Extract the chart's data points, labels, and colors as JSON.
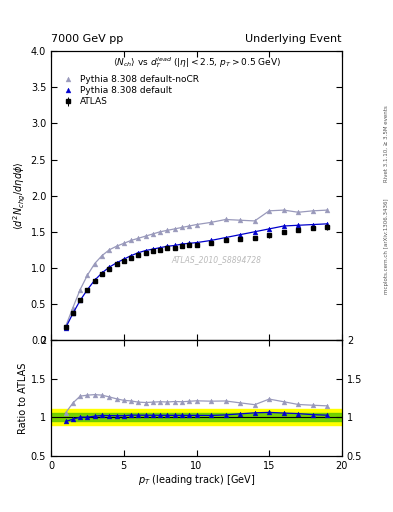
{
  "title_left": "7000 GeV pp",
  "title_right": "Underlying Event",
  "right_label_top": "Rivet 3.1.10, ≥ 3.5M events",
  "right_label_bot": "mcplots.cern.ch [arXiv:1306.3436]",
  "watermark": "ATLAS_2010_S8894728",
  "ylabel_main": "\\langle d^2 N_{chg}/d\\eta d\\phi \\rangle",
  "ylabel_ratio": "Ratio to ATLAS",
  "xlabel": "p_{T} (leading track) [GeV]",
  "xlim": [
    0,
    20
  ],
  "ylim_main": [
    0,
    4
  ],
  "ylim_ratio": [
    0.5,
    2.0
  ],
  "yticks_main": [
    0,
    0.5,
    1.0,
    1.5,
    2.0,
    2.5,
    3.0,
    3.5,
    4.0
  ],
  "yticks_ratio": [
    0.5,
    1.0,
    1.5,
    2.0
  ],
  "atlas_color": "#000000",
  "py_default_color": "#0000cc",
  "py_nocr_color": "#9999bb",
  "green_band_half": 0.05,
  "yellow_band_half": 0.1,
  "atlas_x": [
    1.0,
    1.5,
    2.0,
    2.5,
    3.0,
    3.5,
    4.0,
    4.5,
    5.0,
    5.5,
    6.0,
    6.5,
    7.0,
    7.5,
    8.0,
    8.5,
    9.0,
    9.5,
    10.0,
    11.0,
    12.0,
    13.0,
    14.0,
    15.0,
    16.0,
    17.0,
    18.0,
    19.0
  ],
  "atlas_y": [
    0.18,
    0.38,
    0.55,
    0.7,
    0.82,
    0.91,
    0.99,
    1.05,
    1.1,
    1.14,
    1.18,
    1.21,
    1.23,
    1.25,
    1.27,
    1.28,
    1.3,
    1.31,
    1.32,
    1.35,
    1.38,
    1.4,
    1.42,
    1.45,
    1.5,
    1.52,
    1.55,
    1.57
  ],
  "atlas_yerr": [
    0.02,
    0.02,
    0.02,
    0.02,
    0.02,
    0.02,
    0.02,
    0.02,
    0.02,
    0.02,
    0.02,
    0.02,
    0.02,
    0.02,
    0.02,
    0.02,
    0.02,
    0.02,
    0.02,
    0.02,
    0.02,
    0.02,
    0.02,
    0.03,
    0.03,
    0.03,
    0.03,
    0.04
  ],
  "py_default_x": [
    1.0,
    1.5,
    2.0,
    2.5,
    3.0,
    3.5,
    4.0,
    4.5,
    5.0,
    5.5,
    6.0,
    6.5,
    7.0,
    7.5,
    8.0,
    8.5,
    9.0,
    9.5,
    10.0,
    11.0,
    12.0,
    13.0,
    14.0,
    15.0,
    16.0,
    17.0,
    18.0,
    19.0
  ],
  "py_default_y": [
    0.17,
    0.37,
    0.55,
    0.7,
    0.83,
    0.93,
    1.01,
    1.07,
    1.12,
    1.17,
    1.21,
    1.24,
    1.26,
    1.28,
    1.3,
    1.31,
    1.33,
    1.34,
    1.35,
    1.38,
    1.42,
    1.46,
    1.5,
    1.54,
    1.58,
    1.59,
    1.6,
    1.61
  ],
  "py_nocr_x": [
    1.0,
    1.5,
    2.0,
    2.5,
    3.0,
    3.5,
    4.0,
    4.5,
    5.0,
    5.5,
    6.0,
    6.5,
    7.0,
    7.5,
    8.0,
    8.5,
    9.0,
    9.5,
    10.0,
    11.0,
    12.0,
    13.0,
    14.0,
    15.0,
    16.0,
    17.0,
    18.0,
    19.0
  ],
  "py_nocr_y": [
    0.19,
    0.45,
    0.7,
    0.9,
    1.06,
    1.17,
    1.25,
    1.3,
    1.34,
    1.38,
    1.41,
    1.44,
    1.47,
    1.5,
    1.52,
    1.54,
    1.56,
    1.58,
    1.6,
    1.63,
    1.67,
    1.66,
    1.65,
    1.79,
    1.8,
    1.77,
    1.79,
    1.8
  ]
}
